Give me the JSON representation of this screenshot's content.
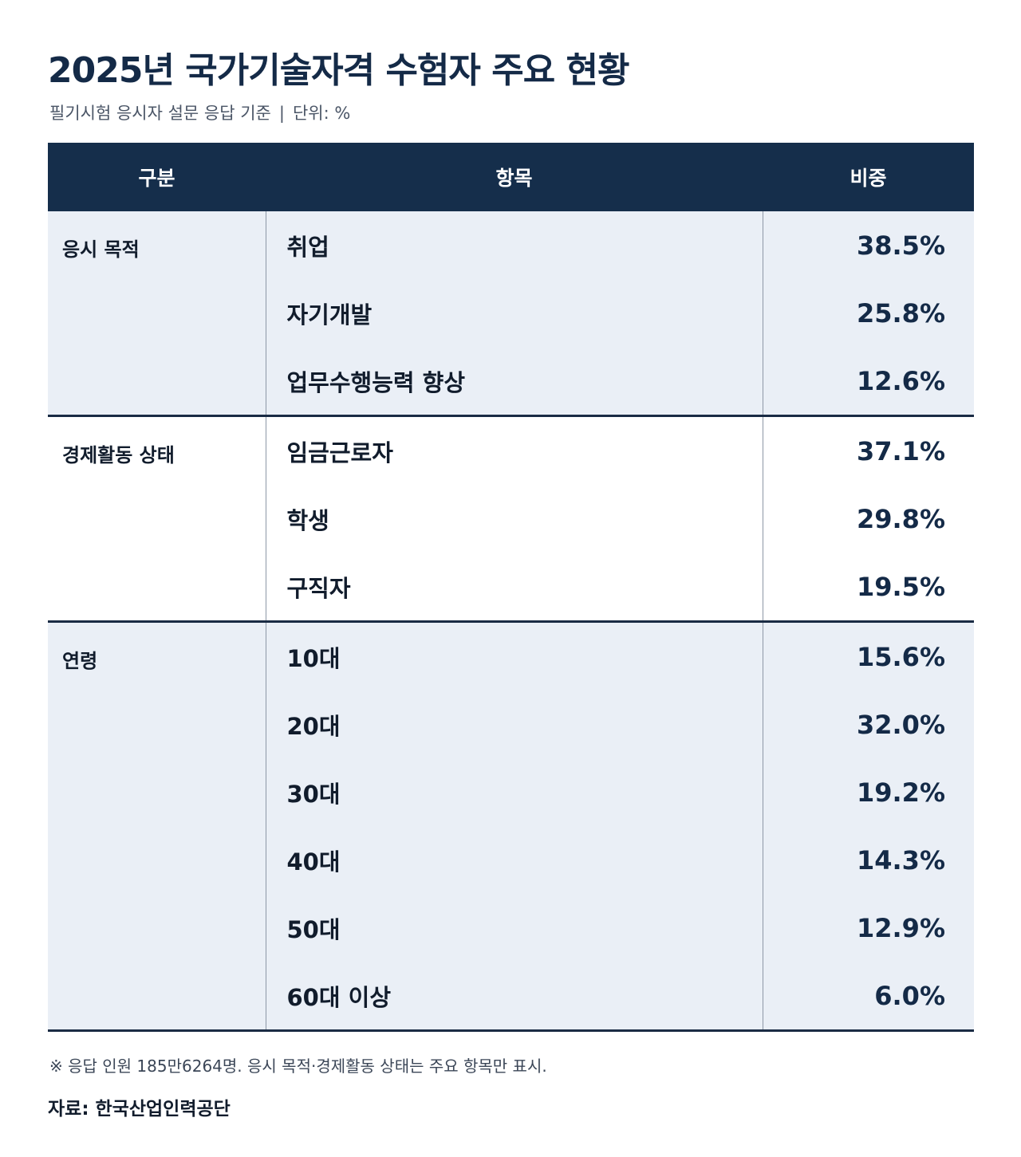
{
  "title": "2025년 국가기술자격 수험자 주요 현황",
  "subtitle": {
    "basis": "필기시험 응시자 설문 응답 기준",
    "separator": "|",
    "unit": "단위: %"
  },
  "table": {
    "headers": [
      "구분",
      "항목",
      "비중"
    ],
    "groups": [
      {
        "category": "응시 목적",
        "rows": [
          {
            "item": "취업",
            "value": "38.5%"
          },
          {
            "item": "자기개발",
            "value": "25.8%"
          },
          {
            "item": "업무수행능력 향상",
            "value": "12.6%"
          }
        ]
      },
      {
        "category": "경제활동 상태",
        "rows": [
          {
            "item": "임금근로자",
            "value": "37.1%"
          },
          {
            "item": "학생",
            "value": "29.8%"
          },
          {
            "item": "구직자",
            "value": "19.5%"
          }
        ]
      },
      {
        "category": "연령",
        "rows": [
          {
            "item": "10대",
            "value": "15.6%"
          },
          {
            "item": "20대",
            "value": "32.0%"
          },
          {
            "item": "30대",
            "value": "19.2%"
          },
          {
            "item": "40대",
            "value": "14.3%"
          },
          {
            "item": "50대",
            "value": "12.9%"
          },
          {
            "item": "60대 이상",
            "value": "6.0%"
          }
        ]
      }
    ]
  },
  "note": "※ 응답 인원 185만6264명. 응시 목적·경제활동 상태는 주요 항목만 표시.",
  "source": "자료: 한국산업인력공단",
  "colors": {
    "header_bg": "#152e4b",
    "shaded_row_bg": "#eaeff6",
    "text_dark": "#142a47"
  }
}
